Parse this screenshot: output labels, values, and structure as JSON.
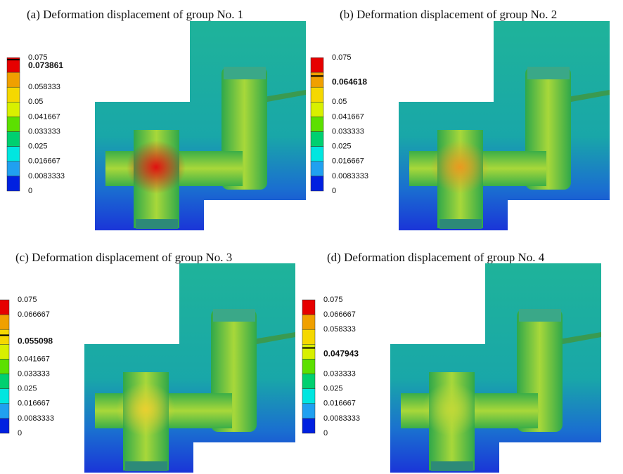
{
  "panels": [
    {
      "caption": "(a) Deformation displacement of group No. 1",
      "legend": [
        "0.075",
        "0.058333",
        "0.05",
        "0.041667",
        "0.033333",
        "0.025",
        "0.016667",
        "0.0083333",
        "0"
      ],
      "max_label": "0.073861"
    },
    {
      "caption": "(b) Deformation displacement of group No. 2",
      "legend": [
        "0.075",
        "0.05",
        "0.041667",
        "0.033333",
        "0.025",
        "0.016667",
        "0.0083333",
        "0"
      ],
      "max_label": "0.064618"
    },
    {
      "caption": "(c) Deformation displacement of group No. 3",
      "legend": [
        "0.075",
        "0.066667",
        "0.041667",
        "0.033333",
        "0.025",
        "0.016667",
        "0.0083333",
        "0"
      ],
      "max_label": "0.055098"
    },
    {
      "caption": "(d) Deformation displacement of group No. 4",
      "legend": [
        "0.075",
        "0.066667",
        "0.058333",
        "0.033333",
        "0.025",
        "0.016667",
        "0.0083333",
        "0"
      ],
      "max_label": "0.047943"
    }
  ]
}
